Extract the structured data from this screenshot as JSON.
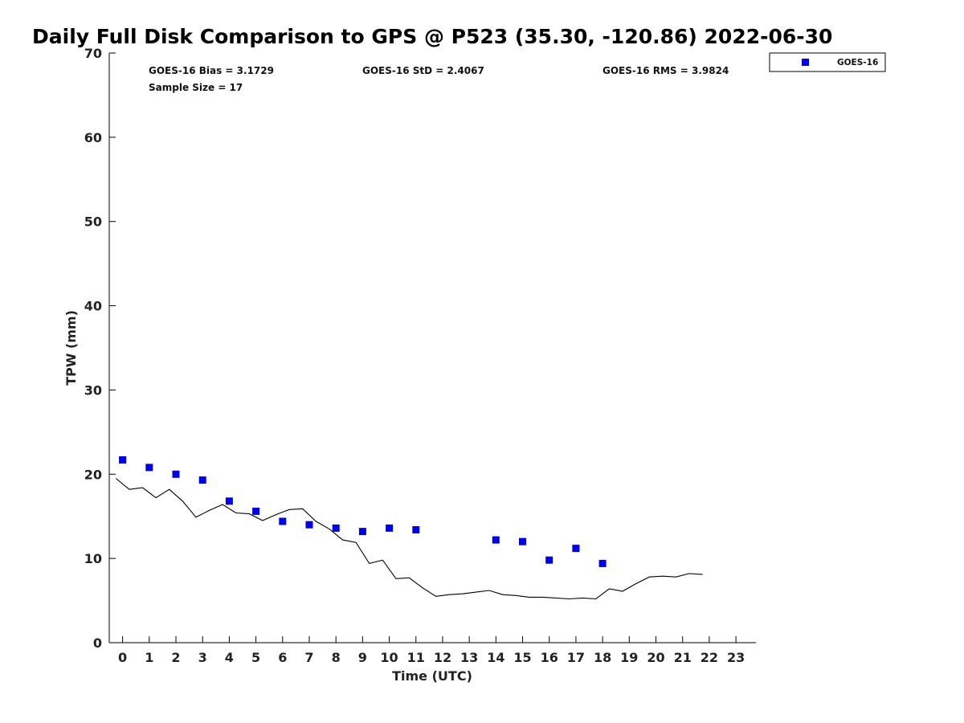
{
  "chart_data": {
    "type": "scatter",
    "title": "Daily Full Disk Comparison to GPS @ P523 (35.30, -120.86) 2022-06-30",
    "xlabel": "Time (UTC)",
    "ylabel": "TPW (mm)",
    "xlim": [
      -0.5,
      23.75
    ],
    "ylim": [
      0,
      70
    ],
    "xticks": [
      0,
      1,
      2,
      3,
      4,
      5,
      6,
      7,
      8,
      9,
      10,
      11,
      12,
      13,
      14,
      15,
      16,
      17,
      18,
      19,
      20,
      21,
      22,
      23
    ],
    "yticks": [
      0,
      10,
      20,
      30,
      40,
      50,
      60,
      70
    ],
    "grid": false,
    "legend_position": "top-right",
    "stats": {
      "bias": "GOES-16 Bias = 3.1729",
      "std": "GOES-16 StD = 2.4067",
      "rms": "GOES-16 RMS = 3.9824",
      "sample_size": "Sample Size = 17"
    },
    "series": [
      {
        "name": "GOES-16",
        "kind": "scatter",
        "marker": "square",
        "color": "#0000e6",
        "x": [
          0,
          1,
          2,
          3,
          4,
          5,
          6,
          7,
          8,
          9,
          10,
          11,
          14,
          15,
          16,
          17,
          18
        ],
        "y": [
          21.7,
          20.8,
          20.0,
          19.3,
          16.8,
          15.6,
          14.4,
          14.0,
          13.6,
          13.2,
          13.6,
          13.4,
          12.2,
          12.0,
          9.8,
          11.2,
          9.4
        ]
      },
      {
        "kind": "line",
        "color": "#000000",
        "x": [
          -0.25,
          0.25,
          0.75,
          1.25,
          1.75,
          2.25,
          2.75,
          3.25,
          3.75,
          4.25,
          4.75,
          5.25,
          5.75,
          6.25,
          6.75,
          7.25,
          7.75,
          8.25,
          8.75,
          9.25,
          9.75,
          10.25,
          10.75,
          11.25,
          11.75,
          12.25,
          12.75,
          13.25,
          13.75,
          14.25,
          14.75,
          15.25,
          15.75,
          16.25,
          16.75,
          17.25,
          17.75,
          18.25,
          18.75,
          19.25,
          19.75,
          20.25,
          20.75,
          21.25,
          21.75
        ],
        "y": [
          19.5,
          18.2,
          18.4,
          17.2,
          18.2,
          16.8,
          14.9,
          15.7,
          16.4,
          15.4,
          15.3,
          14.5,
          15.2,
          15.8,
          15.9,
          14.4,
          13.5,
          12.2,
          11.9,
          9.4,
          9.8,
          7.6,
          7.7,
          6.5,
          5.5,
          5.7,
          5.8,
          6.0,
          6.2,
          5.7,
          5.6,
          5.4,
          5.4,
          5.3,
          5.2,
          5.3,
          5.2,
          6.4,
          6.1,
          7.0,
          7.8,
          7.9,
          7.8,
          8.2,
          8.1
        ]
      }
    ]
  }
}
